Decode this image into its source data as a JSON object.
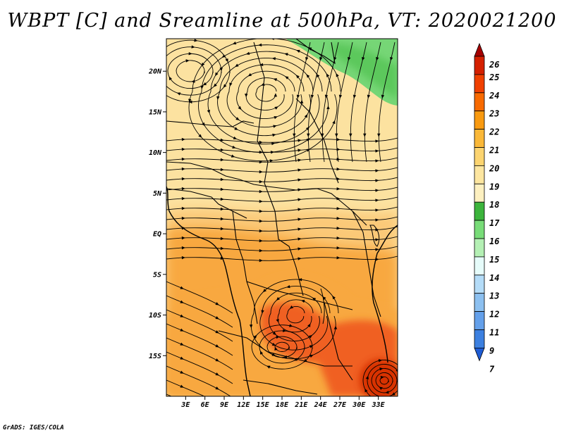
{
  "title": "WBPT [C] and Sreamline at 500hPa, VT: 2020021200",
  "credit": "GrADS: IGES/COLA",
  "map": {
    "lon_range_deg": [
      0,
      36
    ],
    "lat_range_deg": [
      -20,
      24
    ],
    "lat_labels": [
      "20N",
      "15N",
      "10N",
      "5N",
      "EQ",
      "5S",
      "10S",
      "15S"
    ],
    "lon_labels": [
      "3E",
      "6E",
      "9E",
      "12E",
      "15E",
      "18E",
      "21E",
      "24E",
      "27E",
      "30E",
      "33E"
    ]
  },
  "colorbar": {
    "labels": [
      "26",
      "25",
      "24",
      "23",
      "22",
      "21",
      "20",
      "19",
      "18",
      "17",
      "16",
      "15",
      "14",
      "13",
      "12",
      "11",
      "9",
      "7"
    ],
    "colors": [
      "#a50000",
      "#d42000",
      "#f04000",
      "#f86a00",
      "#f99a10",
      "#fab838",
      "#fcd470",
      "#fde6a0",
      "#fdf0c0",
      "#3cb43c",
      "#78dc78",
      "#b4f0b4",
      "#e6fcfa",
      "#b4dcf8",
      "#8cc0f0",
      "#64a0ea",
      "#3c80e0",
      "#1e5cd4"
    ]
  },
  "colors": {
    "frame": "#000000",
    "streamline": "#000000",
    "border": "#000000",
    "green_region": "#76d676",
    "light_field": "#fce2a0",
    "mid_field": "#fbc978",
    "warm_field": "#f8a840",
    "hot_field": "#f06020",
    "hottest_field": "#d83000"
  }
}
